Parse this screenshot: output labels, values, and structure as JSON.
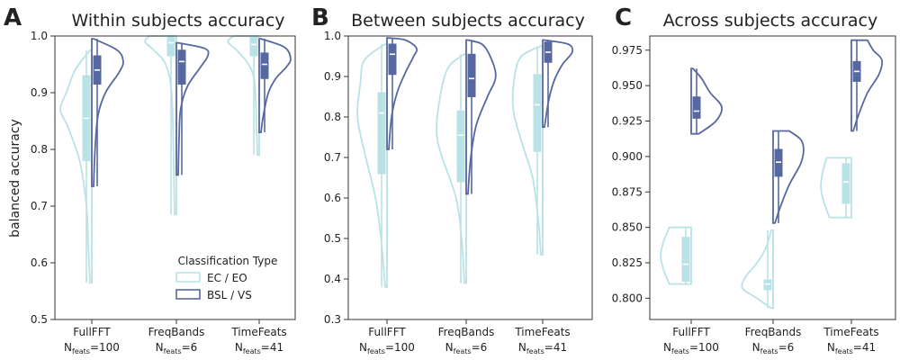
{
  "ylabel": "balanced accuracy",
  "colors": {
    "ecEo": "#b9e2e6",
    "bslVs": "#56689f"
  },
  "legend": {
    "title": "Classification Type",
    "items": [
      {
        "label": "EC / EO",
        "color": "#b9e2e6"
      },
      {
        "label": "BSL / VS",
        "color": "#56689f"
      }
    ]
  },
  "chart_data": [
    {
      "type": "violin",
      "panel_letter": "A",
      "title": "Within subjects accuracy",
      "ylim": [
        0.5,
        1.0
      ],
      "yticks": [
        0.5,
        0.6,
        0.7,
        0.8,
        0.9,
        1.0
      ],
      "categories": [
        {
          "name": "FullFFT",
          "feats": "100"
        },
        {
          "name": "FreqBands",
          "feats": "6"
        },
        {
          "name": "TimeFeats",
          "feats": "41"
        }
      ],
      "series": [
        {
          "name": "EC / EO",
          "side": "left",
          "violins": [
            {
              "min": 0.565,
              "q1": 0.78,
              "median": 0.855,
              "q3": 0.93,
              "max": 0.975,
              "width": 0.35,
              "profile": [
                [
                  0.565,
                  0.0
                ],
                [
                  0.62,
                  0.05
                ],
                [
                  0.7,
                  0.12
                ],
                [
                  0.78,
                  0.35
                ],
                [
                  0.84,
                  0.75
                ],
                [
                  0.87,
                  1.0
                ],
                [
                  0.9,
                  0.8
                ],
                [
                  0.94,
                  0.5
                ],
                [
                  0.975,
                  0.0
                ]
              ]
            },
            {
              "min": 0.685,
              "q1": 0.965,
              "median": 0.988,
              "q3": 1.0,
              "max": 1.0,
              "width": 0.35,
              "profile": [
                [
                  0.685,
                  0.0
                ],
                [
                  0.8,
                  0.04
                ],
                [
                  0.9,
                  0.1
                ],
                [
                  0.95,
                  0.3
                ],
                [
                  0.975,
                  0.7
                ],
                [
                  0.99,
                  1.0
                ],
                [
                  1.0,
                  0.85
                ]
              ]
            },
            {
              "min": 0.79,
              "q1": 0.965,
              "median": 0.985,
              "q3": 0.998,
              "max": 1.0,
              "width": 0.35,
              "profile": [
                [
                  0.79,
                  0.0
                ],
                [
                  0.86,
                  0.04
                ],
                [
                  0.92,
                  0.1
                ],
                [
                  0.95,
                  0.3
                ],
                [
                  0.975,
                  0.7
                ],
                [
                  0.99,
                  1.0
                ],
                [
                  1.0,
                  0.8
                ]
              ]
            }
          ]
        },
        {
          "name": "BSL / VS",
          "side": "right",
          "violins": [
            {
              "min": 0.735,
              "q1": 0.915,
              "median": 0.94,
              "q3": 0.965,
              "max": 0.995,
              "width": 0.35,
              "profile": [
                [
                  0.735,
                  0.0
                ],
                [
                  0.8,
                  0.05
                ],
                [
                  0.86,
                  0.15
                ],
                [
                  0.9,
                  0.4
                ],
                [
                  0.935,
                  0.85
                ],
                [
                  0.955,
                  1.0
                ],
                [
                  0.975,
                  0.8
                ],
                [
                  0.995,
                  0.0
                ]
              ]
            },
            {
              "min": 0.755,
              "q1": 0.915,
              "median": 0.955,
              "q3": 0.975,
              "max": 0.988,
              "width": 0.35,
              "profile": [
                [
                  0.755,
                  0.0
                ],
                [
                  0.82,
                  0.03
                ],
                [
                  0.87,
                  0.08
                ],
                [
                  0.91,
                  0.3
                ],
                [
                  0.945,
                  0.75
                ],
                [
                  0.965,
                  1.0
                ],
                [
                  0.978,
                  0.9
                ],
                [
                  0.988,
                  0.0
                ]
              ]
            },
            {
              "min": 0.83,
              "q1": 0.925,
              "median": 0.95,
              "q3": 0.97,
              "max": 0.995,
              "width": 0.35,
              "profile": [
                [
                  0.83,
                  0.0
                ],
                [
                  0.86,
                  0.08
                ],
                [
                  0.9,
                  0.25
                ],
                [
                  0.925,
                  0.5
                ],
                [
                  0.945,
                  0.85
                ],
                [
                  0.96,
                  1.0
                ],
                [
                  0.98,
                  0.8
                ],
                [
                  0.995,
                  0.0
                ]
              ]
            }
          ]
        }
      ]
    },
    {
      "type": "violin",
      "panel_letter": "B",
      "title": "Between subjects accuracy",
      "ylim": [
        0.3,
        1.0
      ],
      "yticks": [
        0.3,
        0.4,
        0.5,
        0.6,
        0.7,
        0.8,
        0.9,
        1.0
      ],
      "categories": [
        {
          "name": "FullFFT",
          "feats": "100"
        },
        {
          "name": "FreqBands",
          "feats": "6"
        },
        {
          "name": "TimeFeats",
          "feats": "41"
        }
      ],
      "series": [
        {
          "name": "EC / EO",
          "side": "left",
          "violins": [
            {
              "min": 0.38,
              "q1": 0.66,
              "median": 0.81,
              "q3": 0.86,
              "max": 0.98,
              "width": 0.35,
              "profile": [
                [
                  0.38,
                  0.0
                ],
                [
                  0.5,
                  0.15
                ],
                [
                  0.6,
                  0.35
                ],
                [
                  0.7,
                  0.7
                ],
                [
                  0.8,
                  1.0
                ],
                [
                  0.88,
                  0.9
                ],
                [
                  0.94,
                  0.75
                ],
                [
                  0.98,
                  0.0
                ]
              ]
            },
            {
              "min": 0.39,
              "q1": 0.64,
              "median": 0.755,
              "q3": 0.815,
              "max": 0.955,
              "width": 0.35,
              "profile": [
                [
                  0.39,
                  0.0
                ],
                [
                  0.5,
                  0.1
                ],
                [
                  0.6,
                  0.3
                ],
                [
                  0.7,
                  0.8
                ],
                [
                  0.76,
                  1.0
                ],
                [
                  0.84,
                  0.9
                ],
                [
                  0.92,
                  0.6
                ],
                [
                  0.955,
                  0.0
                ]
              ]
            },
            {
              "min": 0.46,
              "q1": 0.715,
              "median": 0.83,
              "q3": 0.905,
              "max": 0.975,
              "width": 0.35,
              "profile": [
                [
                  0.46,
                  0.0
                ],
                [
                  0.55,
                  0.1
                ],
                [
                  0.65,
                  0.3
                ],
                [
                  0.74,
                  0.7
                ],
                [
                  0.82,
                  1.0
                ],
                [
                  0.9,
                  0.95
                ],
                [
                  0.95,
                  0.7
                ],
                [
                  0.975,
                  0.0
                ]
              ]
            }
          ]
        },
        {
          "name": "BSL / VS",
          "side": "right",
          "violins": [
            {
              "min": 0.72,
              "q1": 0.905,
              "median": 0.955,
              "q3": 0.98,
              "max": 0.995,
              "width": 0.35,
              "profile": [
                [
                  0.72,
                  0.0
                ],
                [
                  0.8,
                  0.1
                ],
                [
                  0.86,
                  0.3
                ],
                [
                  0.91,
                  0.6
                ],
                [
                  0.95,
                  0.9
                ],
                [
                  0.97,
                  1.0
                ],
                [
                  0.99,
                  0.6
                ],
                [
                  0.995,
                  0.0
                ]
              ]
            },
            {
              "min": 0.61,
              "q1": 0.85,
              "median": 0.895,
              "q3": 0.955,
              "max": 0.99,
              "width": 0.35,
              "profile": [
                [
                  0.61,
                  0.0
                ],
                [
                  0.7,
                  0.1
                ],
                [
                  0.78,
                  0.3
                ],
                [
                  0.85,
                  0.7
                ],
                [
                  0.9,
                  1.0
                ],
                [
                  0.95,
                  0.8
                ],
                [
                  0.98,
                  0.5
                ],
                [
                  0.99,
                  0.0
                ]
              ]
            },
            {
              "min": 0.775,
              "q1": 0.935,
              "median": 0.96,
              "q3": 0.985,
              "max": 0.99,
              "width": 0.35,
              "profile": [
                [
                  0.775,
                  0.0
                ],
                [
                  0.84,
                  0.15
                ],
                [
                  0.89,
                  0.35
                ],
                [
                  0.93,
                  0.65
                ],
                [
                  0.96,
                  1.0
                ],
                [
                  0.98,
                  0.85
                ],
                [
                  0.99,
                  0.0
                ]
              ]
            }
          ]
        }
      ]
    },
    {
      "type": "violin",
      "panel_letter": "C",
      "title": "Across subjects accuracy",
      "ylim": [
        0.785,
        0.985
      ],
      "yticks": [
        0.8,
        0.825,
        0.85,
        0.875,
        0.9,
        0.925,
        0.95,
        0.975
      ],
      "categories": [
        {
          "name": "FullFFT",
          "feats": "100"
        },
        {
          "name": "FreqBands",
          "feats": "6"
        },
        {
          "name": "TimeFeats",
          "feats": "41"
        }
      ],
      "series": [
        {
          "name": "EC / EO",
          "side": "left",
          "violins": [
            {
              "min": 0.81,
              "q1": 0.812,
              "median": 0.824,
              "q3": 0.843,
              "max": 0.85,
              "width": 0.35,
              "profile": [
                [
                  0.81,
                  0.7
                ],
                [
                  0.82,
                  0.9
                ],
                [
                  0.83,
                  1.0
                ],
                [
                  0.84,
                  0.9
                ],
                [
                  0.85,
                  0.7
                ]
              ]
            },
            {
              "min": 0.793,
              "q1": 0.806,
              "median": 0.81,
              "q3": 0.813,
              "max": 0.848,
              "width": 0.35,
              "profile": [
                [
                  0.793,
                  0.0
                ],
                [
                  0.8,
                  0.5
                ],
                [
                  0.807,
                  1.0
                ],
                [
                  0.815,
                  0.9
                ],
                [
                  0.825,
                  0.5
                ],
                [
                  0.835,
                  0.2
                ],
                [
                  0.848,
                  0.0
                ]
              ]
            },
            {
              "min": 0.857,
              "q1": 0.867,
              "median": 0.882,
              "q3": 0.895,
              "max": 0.899,
              "width": 0.35,
              "profile": [
                [
                  0.857,
                  0.7
                ],
                [
                  0.868,
                  0.9
                ],
                [
                  0.878,
                  1.0
                ],
                [
                  0.888,
                  0.95
                ],
                [
                  0.899,
                  0.8
                ]
              ]
            }
          ]
        },
        {
          "name": "BSL / VS",
          "side": "right",
          "violins": [
            {
              "min": 0.916,
              "q1": 0.927,
              "median": 0.932,
              "q3": 0.942,
              "max": 0.962,
              "width": 0.35,
              "profile": [
                [
                  0.916,
                  0.2
                ],
                [
                  0.925,
                  0.8
                ],
                [
                  0.935,
                  1.0
                ],
                [
                  0.945,
                  0.6
                ],
                [
                  0.955,
                  0.3
                ],
                [
                  0.962,
                  0.0
                ]
              ]
            },
            {
              "min": 0.853,
              "q1": 0.886,
              "median": 0.896,
              "q3": 0.905,
              "max": 0.918,
              "width": 0.35,
              "profile": [
                [
                  0.853,
                  0.0
                ],
                [
                  0.865,
                  0.2
                ],
                [
                  0.88,
                  0.5
                ],
                [
                  0.895,
                  0.9
                ],
                [
                  0.905,
                  1.0
                ],
                [
                  0.912,
                  0.9
                ],
                [
                  0.918,
                  0.5
                ]
              ]
            },
            {
              "min": 0.918,
              "q1": 0.953,
              "median": 0.96,
              "q3": 0.967,
              "max": 0.982,
              "width": 0.35,
              "profile": [
                [
                  0.918,
                  0.0
                ],
                [
                  0.93,
                  0.2
                ],
                [
                  0.945,
                  0.5
                ],
                [
                  0.958,
                  0.9
                ],
                [
                  0.968,
                  1.0
                ],
                [
                  0.975,
                  0.7
                ],
                [
                  0.982,
                  0.5
                ]
              ]
            }
          ]
        }
      ]
    }
  ]
}
